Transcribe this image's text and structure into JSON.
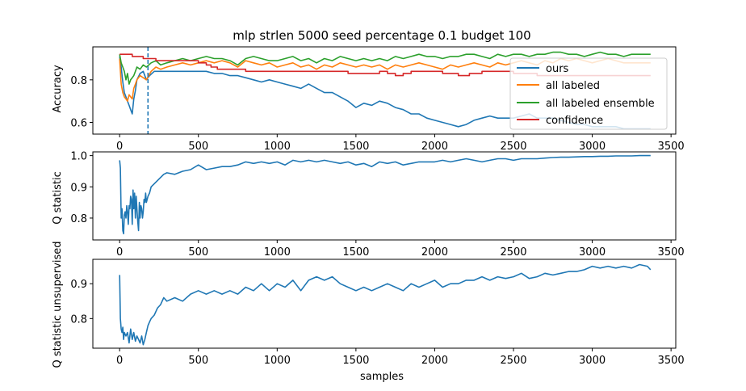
{
  "colors": {
    "ours": "#1f77b4",
    "all_labeled": "#ff7f0e",
    "all_labeled_ensemble": "#2ca02c",
    "confidence": "#d62728"
  },
  "chart_data": [
    {
      "type": "line",
      "title": "mlp strlen 5000 seed percentage 0.1 budget 100",
      "xlabel": "",
      "ylabel": "Accuracy",
      "xlim": [
        -170,
        3530
      ],
      "ylim": [
        0.545,
        0.955
      ],
      "xticks": [
        0,
        500,
        1000,
        1500,
        2000,
        2500,
        3000,
        3500
      ],
      "yticks": [
        0.6,
        0.8
      ],
      "ytick_labels": [
        "0.6",
        "0.8"
      ],
      "legend_position": "top-right",
      "vline": {
        "x": 180,
        "style": "dashed"
      },
      "series": [
        {
          "name": "ours",
          "color_key": "ours",
          "x": [
            0,
            10,
            20,
            30,
            40,
            50,
            60,
            70,
            80,
            90,
            100,
            110,
            130,
            150,
            170,
            190,
            220,
            260,
            300,
            350,
            400,
            450,
            500,
            550,
            600,
            650,
            700,
            750,
            800,
            850,
            900,
            950,
            1000,
            1050,
            1100,
            1150,
            1200,
            1250,
            1300,
            1350,
            1400,
            1450,
            1500,
            1550,
            1600,
            1650,
            1700,
            1750,
            1800,
            1850,
            1900,
            1950,
            2000,
            2050,
            2100,
            2150,
            2200,
            2250,
            2300,
            2350,
            2400,
            2450,
            2500,
            2550,
            2600,
            2650,
            2700,
            2750,
            2800,
            2850,
            2900,
            2950,
            3000,
            3050,
            3100,
            3150,
            3200,
            3250,
            3300,
            3370
          ],
          "values": [
            0.91,
            0.86,
            0.79,
            0.74,
            0.72,
            0.7,
            0.68,
            0.66,
            0.64,
            0.71,
            0.75,
            0.8,
            0.83,
            0.84,
            0.8,
            0.82,
            0.84,
            0.84,
            0.84,
            0.84,
            0.84,
            0.84,
            0.84,
            0.84,
            0.83,
            0.83,
            0.82,
            0.82,
            0.81,
            0.8,
            0.79,
            0.8,
            0.79,
            0.78,
            0.77,
            0.76,
            0.78,
            0.76,
            0.74,
            0.74,
            0.72,
            0.7,
            0.67,
            0.69,
            0.68,
            0.7,
            0.69,
            0.67,
            0.66,
            0.64,
            0.64,
            0.62,
            0.61,
            0.6,
            0.59,
            0.58,
            0.59,
            0.61,
            0.62,
            0.63,
            0.62,
            0.62,
            0.62,
            0.63,
            0.64,
            0.62,
            0.62,
            0.62,
            0.61,
            0.6,
            0.59,
            0.59,
            0.58,
            0.58,
            0.58,
            0.58,
            0.57,
            0.57,
            0.57,
            0.57
          ]
        },
        {
          "name": "all labeled",
          "color_key": "all_labeled",
          "x": [
            0,
            10,
            20,
            30,
            40,
            50,
            60,
            70,
            80,
            90,
            100,
            110,
            130,
            150,
            170,
            200,
            230,
            260,
            300,
            350,
            400,
            450,
            500,
            550,
            600,
            650,
            700,
            750,
            800,
            850,
            900,
            950,
            1000,
            1050,
            1100,
            1150,
            1200,
            1250,
            1300,
            1350,
            1400,
            1450,
            1500,
            1550,
            1600,
            1650,
            1700,
            1750,
            1800,
            1850,
            1900,
            1950,
            2000,
            2050,
            2100,
            2150,
            2200,
            2250,
            2300,
            2350,
            2400,
            2450,
            2500,
            2550,
            2600,
            2650,
            2700,
            2750,
            2800,
            2850,
            2900,
            2950,
            3000,
            3050,
            3100,
            3150,
            3200,
            3250,
            3300,
            3370
          ],
          "values": [
            0.9,
            0.78,
            0.74,
            0.72,
            0.71,
            0.7,
            0.73,
            0.72,
            0.71,
            0.76,
            0.78,
            0.8,
            0.82,
            0.81,
            0.8,
            0.84,
            0.86,
            0.85,
            0.86,
            0.87,
            0.88,
            0.87,
            0.88,
            0.89,
            0.88,
            0.89,
            0.88,
            0.86,
            0.89,
            0.88,
            0.87,
            0.88,
            0.86,
            0.87,
            0.88,
            0.86,
            0.87,
            0.85,
            0.87,
            0.86,
            0.88,
            0.87,
            0.86,
            0.87,
            0.86,
            0.87,
            0.85,
            0.87,
            0.86,
            0.87,
            0.88,
            0.87,
            0.86,
            0.85,
            0.87,
            0.86,
            0.87,
            0.88,
            0.87,
            0.86,
            0.88,
            0.87,
            0.88,
            0.89,
            0.88,
            0.87,
            0.89,
            0.88,
            0.9,
            0.89,
            0.9,
            0.89,
            0.88,
            0.89,
            0.9,
            0.89,
            0.88,
            0.88,
            0.88,
            0.88
          ]
        },
        {
          "name": "all labeled ensemble",
          "color_key": "all_labeled_ensemble",
          "x": [
            0,
            10,
            20,
            30,
            40,
            50,
            60,
            70,
            80,
            90,
            100,
            110,
            130,
            150,
            170,
            200,
            230,
            260,
            300,
            350,
            400,
            450,
            500,
            550,
            600,
            650,
            700,
            750,
            800,
            850,
            900,
            950,
            1000,
            1050,
            1100,
            1150,
            1200,
            1250,
            1300,
            1350,
            1400,
            1450,
            1500,
            1550,
            1600,
            1650,
            1700,
            1750,
            1800,
            1850,
            1900,
            1950,
            2000,
            2050,
            2100,
            2150,
            2200,
            2250,
            2300,
            2350,
            2400,
            2450,
            2500,
            2550,
            2600,
            2650,
            2700,
            2750,
            2800,
            2850,
            2900,
            2950,
            3000,
            3050,
            3100,
            3150,
            3200,
            3250,
            3300,
            3370
          ],
          "values": [
            0.92,
            0.88,
            0.86,
            0.84,
            0.8,
            0.83,
            0.78,
            0.8,
            0.81,
            0.82,
            0.84,
            0.86,
            0.85,
            0.87,
            0.86,
            0.88,
            0.89,
            0.87,
            0.88,
            0.89,
            0.9,
            0.89,
            0.9,
            0.91,
            0.9,
            0.9,
            0.89,
            0.87,
            0.9,
            0.91,
            0.9,
            0.89,
            0.89,
            0.9,
            0.91,
            0.89,
            0.9,
            0.88,
            0.9,
            0.89,
            0.91,
            0.9,
            0.89,
            0.9,
            0.89,
            0.9,
            0.89,
            0.91,
            0.9,
            0.91,
            0.92,
            0.91,
            0.91,
            0.9,
            0.91,
            0.91,
            0.92,
            0.92,
            0.91,
            0.9,
            0.92,
            0.91,
            0.92,
            0.92,
            0.91,
            0.92,
            0.92,
            0.93,
            0.93,
            0.92,
            0.92,
            0.91,
            0.92,
            0.93,
            0.92,
            0.92,
            0.91,
            0.92,
            0.92,
            0.92
          ]
        },
        {
          "name": "confidence",
          "color_key": "confidence",
          "x": [
            0,
            80,
            80,
            150,
            150,
            230,
            230,
            500,
            500,
            550,
            550,
            580,
            580,
            620,
            620,
            800,
            800,
            900,
            900,
            1450,
            1450,
            1650,
            1650,
            1700,
            1700,
            1750,
            1750,
            1800,
            1800,
            1850,
            1850,
            2050,
            2050,
            2150,
            2150,
            2220,
            2220,
            2300,
            2300,
            2500,
            2500,
            2650,
            2650,
            3370
          ],
          "values": [
            0.92,
            0.92,
            0.91,
            0.91,
            0.9,
            0.9,
            0.89,
            0.89,
            0.88,
            0.88,
            0.87,
            0.87,
            0.86,
            0.86,
            0.85,
            0.85,
            0.84,
            0.84,
            0.84,
            0.84,
            0.83,
            0.83,
            0.84,
            0.84,
            0.83,
            0.83,
            0.82,
            0.82,
            0.83,
            0.83,
            0.84,
            0.84,
            0.83,
            0.83,
            0.82,
            0.82,
            0.83,
            0.83,
            0.84,
            0.84,
            0.83,
            0.83,
            0.82,
            0.82
          ]
        }
      ]
    },
    {
      "type": "line",
      "title": "",
      "xlabel": "",
      "ylabel": "Q statistic",
      "xlim": [
        -170,
        3530
      ],
      "ylim": [
        0.73,
        1.012
      ],
      "xticks": [
        0,
        500,
        1000,
        1500,
        2000,
        2500,
        3000,
        3500
      ],
      "yticks": [
        0.8,
        0.9,
        1.0
      ],
      "ytick_labels": [
        "0.8",
        "0.9",
        "1.0"
      ],
      "series": [
        {
          "color_key": "ours",
          "x": [
            0,
            5,
            10,
            15,
            20,
            25,
            30,
            35,
            40,
            45,
            50,
            55,
            60,
            65,
            70,
            75,
            80,
            85,
            90,
            95,
            100,
            105,
            110,
            115,
            120,
            125,
            130,
            135,
            140,
            145,
            150,
            155,
            160,
            165,
            170,
            175,
            180,
            190,
            200,
            220,
            240,
            260,
            280,
            300,
            350,
            400,
            450,
            500,
            550,
            600,
            650,
            700,
            750,
            800,
            850,
            900,
            950,
            1000,
            1050,
            1100,
            1150,
            1200,
            1250,
            1300,
            1350,
            1400,
            1450,
            1500,
            1550,
            1600,
            1650,
            1700,
            1750,
            1800,
            1850,
            1900,
            1950,
            2000,
            2050,
            2100,
            2150,
            2200,
            2250,
            2300,
            2350,
            2400,
            2450,
            2500,
            2550,
            2600,
            2650,
            2700,
            2750,
            2800,
            2850,
            2900,
            2950,
            3000,
            3050,
            3100,
            3150,
            3200,
            3250,
            3300,
            3370
          ],
          "values": [
            0.985,
            0.96,
            0.8,
            0.83,
            0.76,
            0.75,
            0.81,
            0.82,
            0.8,
            0.84,
            0.82,
            0.78,
            0.84,
            0.83,
            0.87,
            0.86,
            0.78,
            0.89,
            0.83,
            0.88,
            0.8,
            0.87,
            0.83,
            0.79,
            0.76,
            0.85,
            0.8,
            0.84,
            0.83,
            0.8,
            0.82,
            0.86,
            0.85,
            0.88,
            0.85,
            0.86,
            0.87,
            0.88,
            0.9,
            0.91,
            0.92,
            0.93,
            0.94,
            0.945,
            0.94,
            0.95,
            0.955,
            0.97,
            0.955,
            0.96,
            0.965,
            0.965,
            0.97,
            0.98,
            0.975,
            0.98,
            0.975,
            0.98,
            0.97,
            0.985,
            0.98,
            0.985,
            0.98,
            0.985,
            0.98,
            0.975,
            0.98,
            0.97,
            0.975,
            0.965,
            0.98,
            0.975,
            0.98,
            0.97,
            0.975,
            0.98,
            0.98,
            0.98,
            0.985,
            0.98,
            0.985,
            0.99,
            0.985,
            0.98,
            0.985,
            0.99,
            0.99,
            0.985,
            0.99,
            0.99,
            0.99,
            0.992,
            0.994,
            0.995,
            0.995,
            0.996,
            0.997,
            0.997,
            0.998,
            0.998,
            0.999,
            0.999,
            0.999,
            1.0,
            1.0
          ]
        }
      ]
    },
    {
      "type": "line",
      "title": "",
      "xlabel": "samples",
      "ylabel": "Q statistic unsupervised",
      "xlim": [
        -170,
        3530
      ],
      "ylim": [
        0.715,
        0.97
      ],
      "xticks": [
        0,
        500,
        1000,
        1500,
        2000,
        2500,
        3000,
        3500
      ],
      "yticks": [
        0.8,
        0.9
      ],
      "ytick_labels": [
        "0.8",
        "0.9"
      ],
      "series": [
        {
          "color_key": "ours",
          "x": [
            0,
            5,
            10,
            15,
            20,
            25,
            30,
            40,
            50,
            60,
            70,
            80,
            90,
            100,
            110,
            120,
            130,
            140,
            150,
            160,
            170,
            180,
            190,
            200,
            220,
            240,
            260,
            280,
            300,
            350,
            400,
            450,
            500,
            550,
            600,
            650,
            700,
            750,
            800,
            850,
            900,
            950,
            1000,
            1050,
            1100,
            1150,
            1200,
            1250,
            1300,
            1350,
            1400,
            1450,
            1500,
            1550,
            1600,
            1650,
            1700,
            1750,
            1800,
            1850,
            1900,
            1950,
            2000,
            2050,
            2100,
            2150,
            2200,
            2250,
            2300,
            2350,
            2400,
            2450,
            2500,
            2550,
            2600,
            2650,
            2700,
            2750,
            2800,
            2850,
            2900,
            2950,
            3000,
            3050,
            3100,
            3150,
            3200,
            3250,
            3300,
            3350,
            3370
          ],
          "values": [
            0.925,
            0.8,
            0.77,
            0.76,
            0.775,
            0.74,
            0.76,
            0.75,
            0.76,
            0.73,
            0.77,
            0.74,
            0.76,
            0.735,
            0.75,
            0.74,
            0.73,
            0.75,
            0.725,
            0.74,
            0.76,
            0.78,
            0.79,
            0.8,
            0.81,
            0.83,
            0.84,
            0.86,
            0.85,
            0.86,
            0.85,
            0.87,
            0.88,
            0.87,
            0.88,
            0.87,
            0.88,
            0.87,
            0.89,
            0.88,
            0.9,
            0.88,
            0.9,
            0.89,
            0.91,
            0.88,
            0.91,
            0.92,
            0.91,
            0.92,
            0.9,
            0.89,
            0.88,
            0.89,
            0.88,
            0.89,
            0.9,
            0.89,
            0.88,
            0.9,
            0.89,
            0.9,
            0.91,
            0.89,
            0.9,
            0.9,
            0.91,
            0.91,
            0.92,
            0.91,
            0.92,
            0.915,
            0.92,
            0.93,
            0.915,
            0.92,
            0.93,
            0.925,
            0.93,
            0.935,
            0.935,
            0.94,
            0.95,
            0.945,
            0.95,
            0.945,
            0.95,
            0.945,
            0.955,
            0.95,
            0.94
          ]
        }
      ]
    }
  ]
}
